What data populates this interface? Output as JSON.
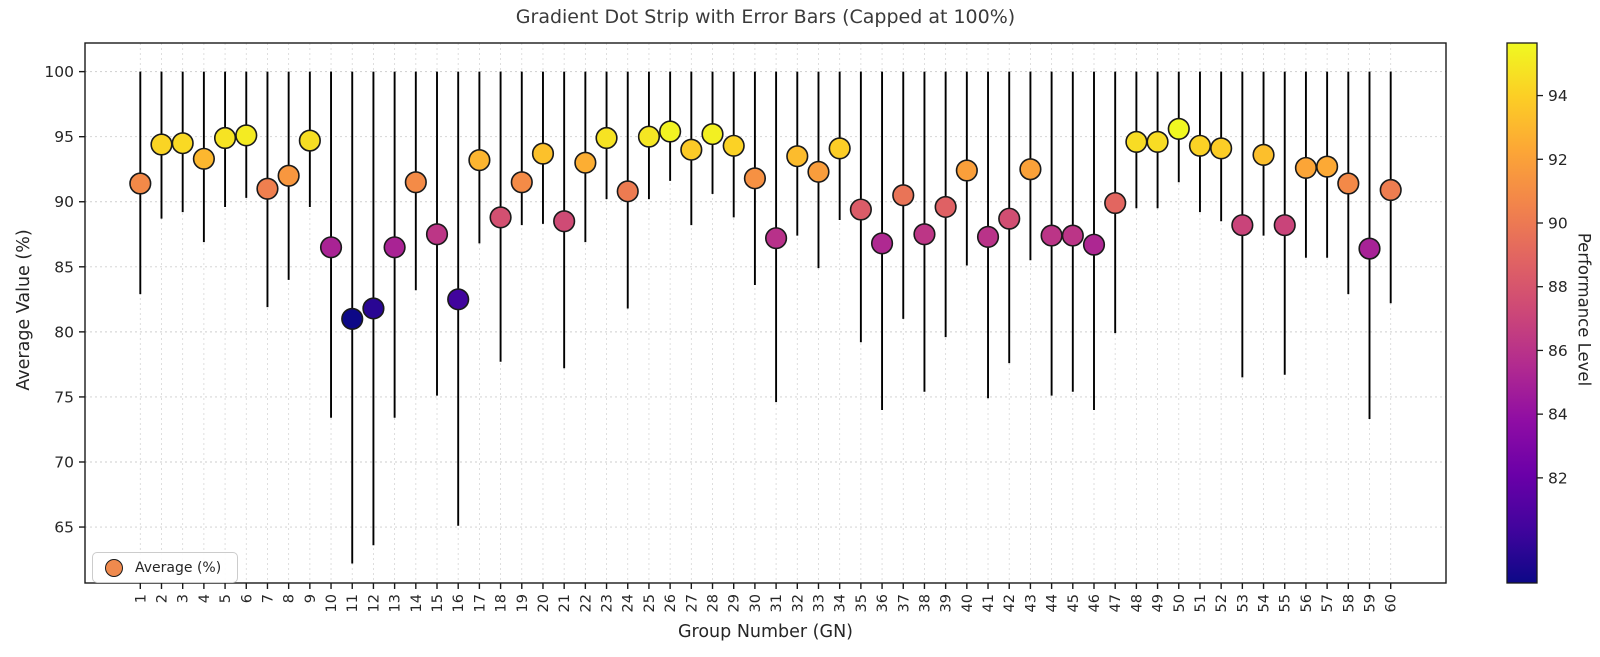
{
  "title": "Gradient Dot Strip with Error Bars (Capped at 100%)",
  "x_axis": {
    "label": "Group Number (GN)",
    "tick_labels": [
      "1",
      "2",
      "3",
      "4",
      "5",
      "6",
      "7",
      "8",
      "9",
      "10",
      "11",
      "12",
      "13",
      "14",
      "15",
      "16",
      "17",
      "18",
      "19",
      "20",
      "21",
      "22",
      "23",
      "24",
      "25",
      "26",
      "27",
      "28",
      "29",
      "30",
      "31",
      "32",
      "33",
      "34",
      "35",
      "36",
      "37",
      "38",
      "39",
      "40",
      "41",
      "42",
      "43",
      "44",
      "45",
      "46",
      "47",
      "48",
      "49",
      "50",
      "51",
      "52",
      "53",
      "54",
      "55",
      "56",
      "57",
      "58",
      "59",
      "60"
    ]
  },
  "y_axis": {
    "label": "Average Value (%)",
    "ticks": [
      65,
      70,
      75,
      80,
      85,
      90,
      95,
      100
    ],
    "range": [
      60.7,
      102.2
    ]
  },
  "legend": {
    "label": "Average (%)",
    "marker_color": "#ef8a4e"
  },
  "colorbar": {
    "label": "Performance Level",
    "ticks": [
      82,
      84,
      86,
      88,
      90,
      92,
      94
    ],
    "vmin": 78.7,
    "vmax": 95.65,
    "colormap": "plasma",
    "stops": [
      "#0d0887",
      "#41049d",
      "#6a00a8",
      "#8f0da4",
      "#b12a90",
      "#cc4778",
      "#e16462",
      "#f2844b",
      "#fca636",
      "#fcce25",
      "#f0f921"
    ]
  },
  "colors": {
    "error_bar": "#000000",
    "dot_edge": "#1a1a1a",
    "grid": "#c9c9c9",
    "spine": "#1a1a1a",
    "title_text": "#3a3a3a",
    "tick_text": "#262626"
  },
  "chart_data": {
    "type": "scatter",
    "title": "Gradient Dot Strip with Error Bars (Capped at 100%)",
    "xlabel": "Group Number (GN)",
    "ylabel": "Average Value (%)",
    "ylim": [
      60.7,
      102.2
    ],
    "grid": true,
    "legend_position": "lower left",
    "error_cap": 100,
    "x": [
      1,
      2,
      3,
      4,
      5,
      6,
      7,
      8,
      9,
      10,
      11,
      12,
      13,
      14,
      15,
      16,
      17,
      18,
      19,
      20,
      21,
      22,
      23,
      24,
      25,
      26,
      27,
      28,
      29,
      30,
      31,
      32,
      33,
      34,
      35,
      36,
      37,
      38,
      39,
      40,
      41,
      42,
      43,
      44,
      45,
      46,
      47,
      48,
      49,
      50,
      51,
      52,
      53,
      54,
      55,
      56,
      57,
      58,
      59,
      60
    ],
    "series": [
      {
        "name": "Average (%)",
        "values": [
          91.4,
          94.4,
          94.5,
          93.3,
          94.9,
          95.1,
          91.0,
          92.0,
          94.7,
          86.5,
          81.0,
          81.8,
          86.5,
          91.5,
          87.5,
          82.5,
          93.2,
          88.8,
          91.5,
          93.7,
          88.5,
          93.0,
          94.9,
          90.8,
          95.0,
          95.4,
          94.0,
          95.2,
          94.3,
          91.8,
          87.2,
          93.5,
          92.3,
          94.1,
          89.4,
          86.8,
          90.5,
          87.5,
          89.6,
          92.4,
          87.3,
          88.7,
          92.5,
          87.4,
          87.4,
          86.7,
          89.9,
          94.6,
          94.6,
          95.6,
          94.3,
          94.1,
          88.2,
          93.6,
          88.2,
          92.6,
          92.7,
          91.4,
          86.4,
          90.9
        ]
      },
      {
        "name": "error_low",
        "values": [
          82.9,
          88.7,
          89.2,
          86.9,
          89.6,
          90.3,
          81.9,
          84.0,
          89.6,
          73.4,
          62.2,
          63.6,
          73.4,
          83.2,
          75.1,
          65.1,
          86.8,
          77.7,
          88.2,
          88.3,
          77.2,
          86.9,
          90.2,
          81.8,
          90.2,
          91.6,
          88.2,
          90.6,
          88.8,
          83.6,
          74.6,
          87.4,
          84.9,
          88.6,
          79.2,
          74.0,
          81.0,
          75.4,
          79.6,
          85.1,
          74.9,
          77.6,
          85.5,
          75.1,
          75.4,
          74.0,
          79.9,
          89.5,
          89.5,
          91.5,
          89.2,
          88.5,
          76.5,
          87.4,
          76.7,
          85.7,
          85.7,
          82.9,
          73.3,
          82.2
        ]
      },
      {
        "name": "error_high",
        "values": [
          100,
          100,
          100,
          100,
          100,
          100,
          100,
          100,
          100,
          100,
          100,
          100,
          100,
          100,
          100,
          100,
          100,
          100,
          100,
          100,
          100,
          100,
          100,
          100,
          100,
          100,
          100,
          100,
          100,
          100,
          100,
          100,
          100,
          100,
          100,
          100,
          100,
          100,
          100,
          100,
          100,
          100,
          100,
          100,
          100,
          100,
          100,
          100,
          100,
          100,
          100,
          100,
          100,
          100,
          100,
          100,
          100,
          100,
          100,
          100
        ]
      },
      {
        "name": "Performance Level",
        "values": [
          90.8,
          94.2,
          94.4,
          93.0,
          94.8,
          95.1,
          90.3,
          91.5,
          94.6,
          85.1,
          78.7,
          79.6,
          85.1,
          90.9,
          86.2,
          80.4,
          92.9,
          87.7,
          90.9,
          93.4,
          87.4,
          92.6,
          94.8,
          90.1,
          94.9,
          95.4,
          93.8,
          95.3,
          94.1,
          91.2,
          85.9,
          93.2,
          91.8,
          93.9,
          88.4,
          85.4,
          89.7,
          86.2,
          88.7,
          91.9,
          86.0,
          87.6,
          92.0,
          86.1,
          86.1,
          85.3,
          89.0,
          94.5,
          94.5,
          95.6,
          94.1,
          93.9,
          87.0,
          93.3,
          87.0,
          92.2,
          92.4,
          90.8,
          85.0,
          90.2
        ]
      }
    ]
  }
}
